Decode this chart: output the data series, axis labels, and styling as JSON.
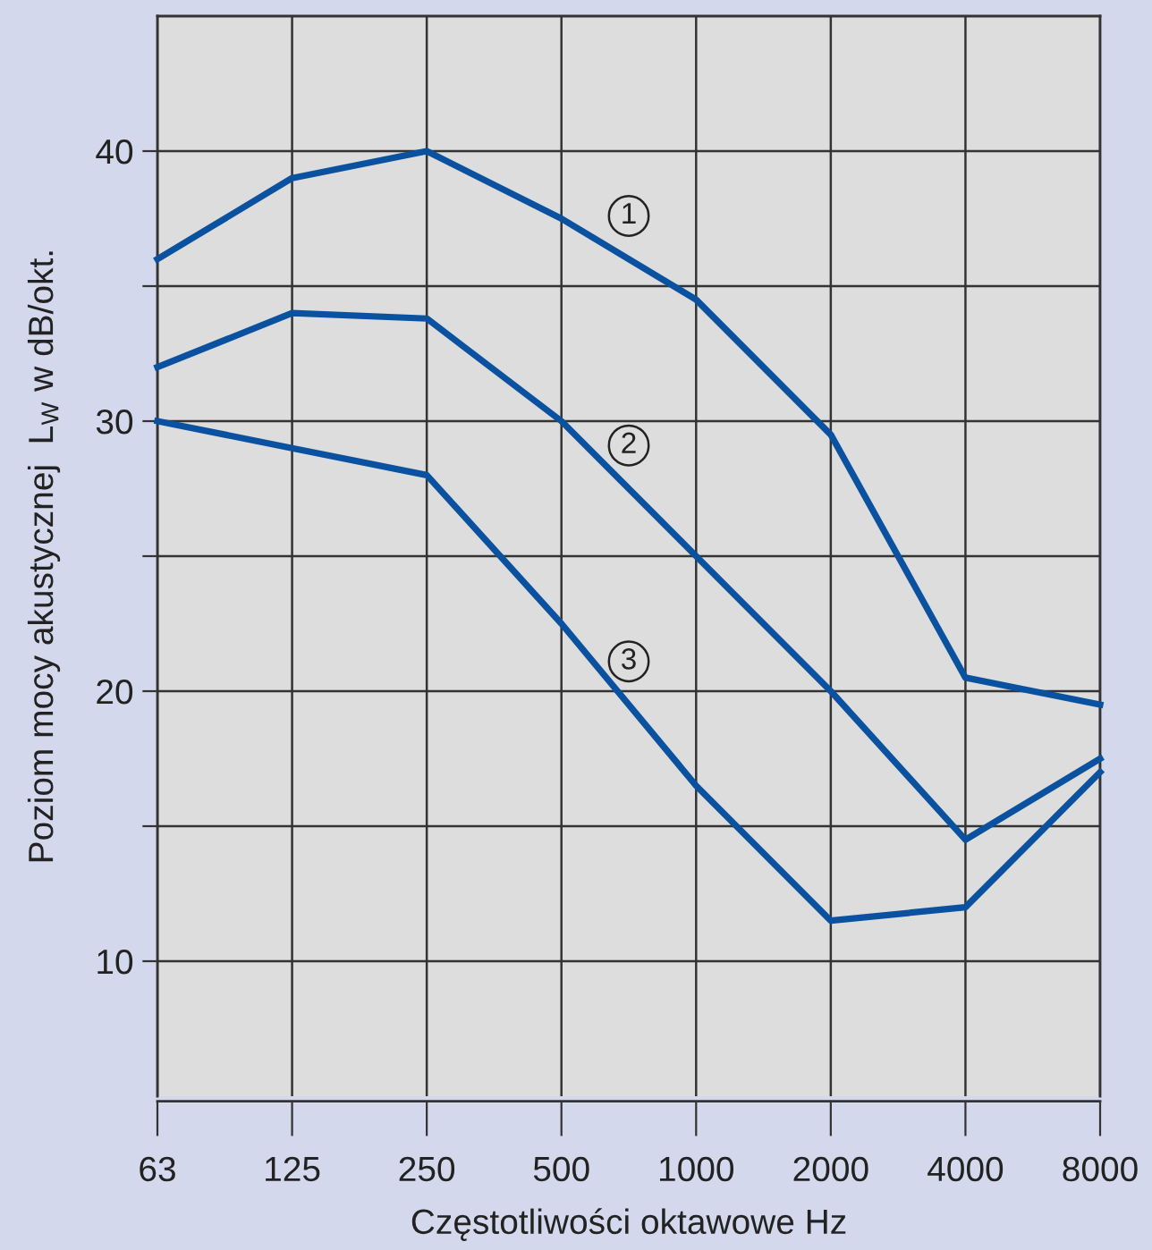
{
  "chart_data": {
    "type": "line",
    "xlabel": "Częstotliwości oktawowe Hz",
    "ylabel": "Poziom mocy akustycznej  L$_{W}$ w dB/okt.",
    "categories": [
      "63",
      "125",
      "250",
      "500",
      "1000",
      "2000",
      "4000",
      "8000"
    ],
    "series": [
      {
        "name": "1",
        "color": "#0a52a0",
        "values": [
          36,
          39,
          40,
          37.5,
          34.5,
          29.5,
          20.5,
          19.5
        ]
      },
      {
        "name": "2",
        "color": "#0a52a0",
        "values": [
          32,
          34,
          33.8,
          30,
          25,
          20,
          14.5,
          17.5
        ]
      },
      {
        "name": "3",
        "color": "#0a52a0",
        "values": [
          30,
          29,
          28,
          22.5,
          16.5,
          11.5,
          12,
          17
        ]
      }
    ],
    "ylim": [
      5,
      45
    ],
    "yticks": [
      10,
      {
        "value": 15,
        "label": null
      },
      20,
      {
        "value": 25,
        "label": null
      },
      30,
      {
        "value": 35,
        "label": null
      },
      40
    ],
    "grid": true,
    "legend": false,
    "marker": "none",
    "line_style": "solid"
  }
}
